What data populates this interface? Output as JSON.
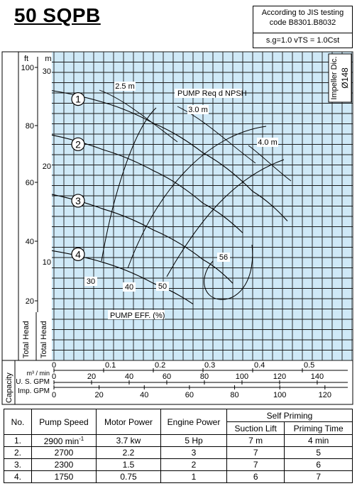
{
  "model": "50 SQPB",
  "spec": {
    "line1": "According to JIS testing",
    "line2": "code B8301.B8032",
    "line3": "s.g=1.0 vTS = 1.0Cst"
  },
  "chart_data": {
    "type": "line",
    "impeller": "Impeller Dic. Ø148",
    "axes": {
      "head_ft": {
        "label": "ft",
        "ticks": [
          100,
          80,
          60,
          40,
          20
        ],
        "range": [
          0,
          104
        ]
      },
      "head_m": {
        "label": "m",
        "ticks": [
          30,
          20,
          10
        ],
        "range": [
          0,
          31.7
        ]
      },
      "total_head_label": "Total Head",
      "capacity_label": "Capacity",
      "cmm": {
        "label": "m³ / min",
        "ticks": [
          0,
          0.1,
          0.2,
          0.3,
          0.4,
          0.5
        ],
        "range": [
          0,
          0.62
        ]
      },
      "usgpm": {
        "label": "U. S. GPM",
        "ticks": [
          0,
          20,
          40,
          60,
          80,
          100,
          120,
          140
        ],
        "range": [
          0,
          163.8
        ]
      },
      "impgpm": {
        "label": "Imp. GPM",
        "ticks": [
          0,
          20,
          40,
          60,
          80,
          100,
          120
        ],
        "range": [
          0,
          136.4
        ]
      }
    },
    "series": [
      {
        "name": "1",
        "label": "1",
        "x_cmm": [
          0,
          0.1,
          0.2,
          0.3,
          0.4,
          0.47
        ],
        "y_ft": [
          91,
          87,
          80,
          70,
          57,
          47
        ]
      },
      {
        "name": "2",
        "label": "2",
        "x_cmm": [
          0,
          0.1,
          0.2,
          0.3,
          0.38
        ],
        "y_ft": [
          76,
          71,
          64,
          53,
          43
        ]
      },
      {
        "name": "3",
        "label": "3",
        "x_cmm": [
          0,
          0.1,
          0.2,
          0.3,
          0.36
        ],
        "y_ft": [
          56,
          51,
          44,
          34,
          26
        ]
      },
      {
        "name": "4",
        "label": "4",
        "x_cmm": [
          0,
          0.1,
          0.2,
          0.28
        ],
        "y_ft": [
          37,
          33,
          26,
          19
        ]
      }
    ],
    "npsh": {
      "label": "PUMP Req d NPSH",
      "values": [
        "2.5 m",
        "3.0 m",
        "4.0 m"
      ]
    },
    "efficiency": {
      "label": "PUMP EFF. (%)",
      "values": [
        "30",
        "40",
        "50",
        "56"
      ]
    }
  },
  "table": {
    "headers": {
      "no": "No.",
      "speed": "Pump Speed",
      "motor": "Motor Power",
      "engine": "Engine Power",
      "self_priming": "Self Priming",
      "lift": "Suction Lift",
      "priming": "Priming Time"
    },
    "speed_unit_sup": "-1",
    "rows": [
      {
        "no": "1.",
        "speed": "2900 min",
        "motor": "3.7 kw",
        "engine": "5 Hp",
        "lift": "7 m",
        "priming": "4 min"
      },
      {
        "no": "2.",
        "speed": "2700",
        "motor": "2.2",
        "engine": "3",
        "lift": "7",
        "priming": "5"
      },
      {
        "no": "3.",
        "speed": "2300",
        "motor": "1.5",
        "engine": "2",
        "lift": "7",
        "priming": "6"
      },
      {
        "no": "4.",
        "speed": "1750",
        "motor": "0.75",
        "engine": "1",
        "lift": "6",
        "priming": "7"
      }
    ]
  }
}
